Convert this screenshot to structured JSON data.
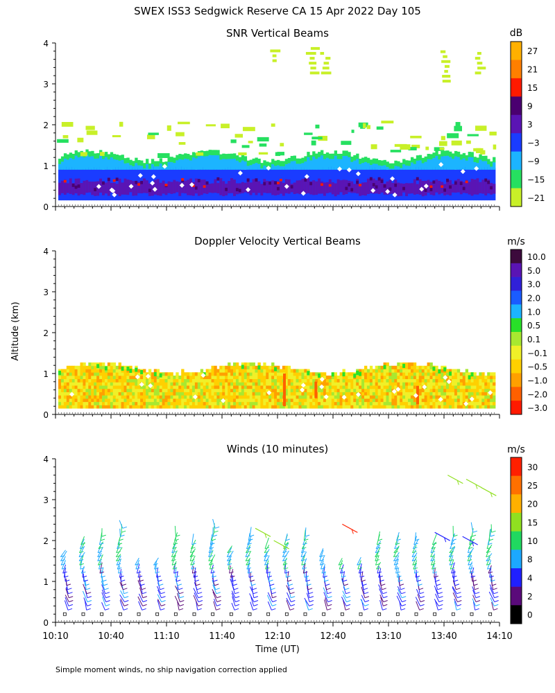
{
  "figure": {
    "title": "SWEX ISS3 Sedgwick Reserve CA  15 Apr 2022 Day 105",
    "ylabel": "Altitude (km)",
    "xlabel": "Time (UT)",
    "footnote": "Simple moment winds, no ship navigation correction applied"
  },
  "chart_data": [
    {
      "type": "heatmap",
      "title": "SNR Vertical Beams",
      "xlim": [
        "10:10",
        "14:10"
      ],
      "ylim": [
        0,
        4
      ],
      "y_ticks": [
        0,
        1,
        2,
        3,
        4
      ],
      "colorbar": {
        "unit": "dB",
        "labels": [
          "27",
          "21",
          "15",
          "9",
          "3",
          "−3",
          "−9",
          "−15",
          "−21"
        ],
        "colors": [
          "#ffb000",
          "#ff7f00",
          "#ff1a00",
          "#4a0070",
          "#5a14b4",
          "#1a3cff",
          "#1cb4ff",
          "#26e060",
          "#c8f028"
        ]
      },
      "layers": [
        {
          "name": "0–0.9 km",
          "color": "#1a3cff"
        },
        {
          "name": "0.3–0.7 km",
          "color": "#5a14b4"
        },
        {
          "name": "0.9–1.2 km",
          "color": "#1cb4ff"
        },
        {
          "name": "1.0–1.3 km",
          "color": "#26e060"
        },
        {
          "name": "1.2–2.0 km",
          "color": "#c8f028"
        }
      ]
    },
    {
      "type": "heatmap",
      "title": "Doppler Velocity Vertical Beams",
      "xlim": [
        "10:10",
        "14:10"
      ],
      "ylim": [
        0,
        4
      ],
      "y_ticks": [
        0,
        1,
        2,
        3,
        4
      ],
      "colorbar": {
        "unit": "m/s",
        "labels": [
          "10.0",
          "5.0",
          "3.0",
          "2.0",
          "1.0",
          "0.5",
          "0.1",
          "−0.1",
          "−0.5",
          "−1.0",
          "−2.0",
          "−3.0"
        ],
        "colors": [
          "#3c0a3c",
          "#5a14b4",
          "#3020d8",
          "#1a5cff",
          "#1cb4ff",
          "#28e028",
          "#a8e830",
          "#f0f028",
          "#ffd000",
          "#ffa000",
          "#ff6000",
          "#ff1a00"
        ]
      }
    },
    {
      "type": "scatter",
      "title": "Winds (10 minutes)",
      "xlim": [
        "10:10",
        "14:10"
      ],
      "ylim": [
        0,
        4
      ],
      "y_ticks": [
        0,
        1,
        2,
        3,
        4
      ],
      "x_ticks": [
        "10:10",
        "10:40",
        "11:10",
        "11:40",
        "12:10",
        "12:40",
        "13:10",
        "13:40",
        "14:10"
      ],
      "colorbar": {
        "unit": "m/s",
        "labels": [
          "30",
          "25",
          "20",
          "15",
          "10",
          "8",
          "4",
          "2",
          "0"
        ],
        "colors": [
          "#ff2000",
          "#ff7000",
          "#ffb000",
          "#90e020",
          "#20d860",
          "#1ca8ff",
          "#2020ff",
          "#5a0a7a",
          "#000000"
        ]
      }
    }
  ]
}
